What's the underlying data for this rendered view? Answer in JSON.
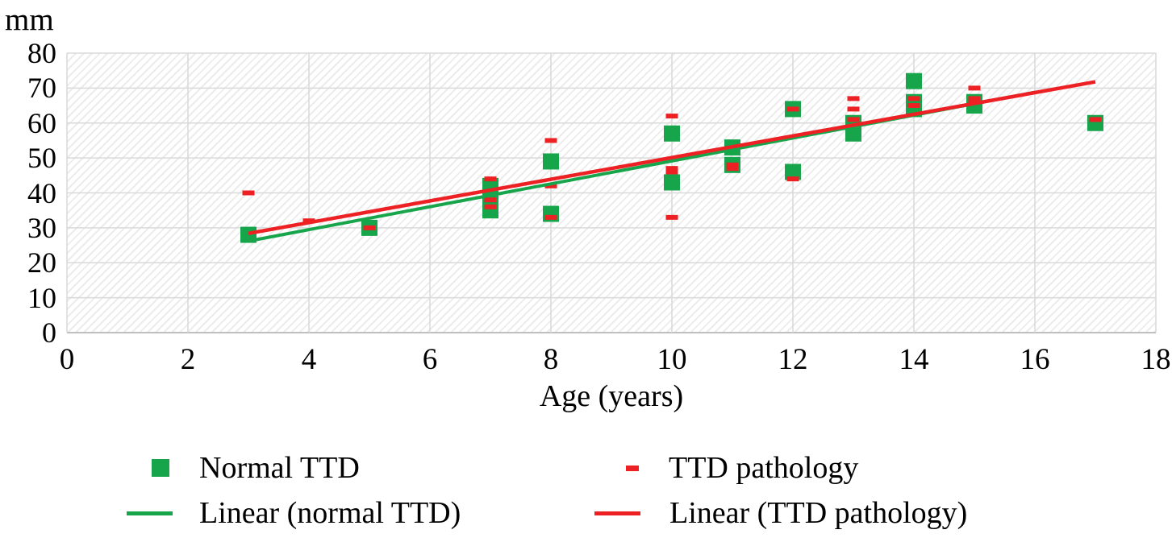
{
  "chart_data": {
    "type": "scatter",
    "y_unit_label": "mm",
    "xlabel": "Age (years)",
    "xlim": [
      0,
      18
    ],
    "ylim": [
      0,
      80
    ],
    "x_ticks": [
      0,
      2,
      4,
      6,
      8,
      10,
      12,
      14,
      16,
      18
    ],
    "y_ticks": [
      0,
      10,
      20,
      30,
      40,
      50,
      60,
      70,
      80
    ],
    "grid": true,
    "series": [
      {
        "name": "Normal TTD",
        "marker": "square",
        "color": "#17A54B",
        "points": [
          [
            3,
            28
          ],
          [
            5,
            30
          ],
          [
            7,
            42
          ],
          [
            7,
            39
          ],
          [
            7,
            35
          ],
          [
            8,
            49
          ],
          [
            8,
            34
          ],
          [
            10,
            57
          ],
          [
            10,
            43
          ],
          [
            11,
            53
          ],
          [
            11,
            48
          ],
          [
            12,
            64
          ],
          [
            12,
            46
          ],
          [
            13,
            60
          ],
          [
            13,
            57
          ],
          [
            14,
            72
          ],
          [
            14,
            66
          ],
          [
            14,
            64
          ],
          [
            15,
            66
          ],
          [
            15,
            65
          ],
          [
            17,
            60
          ]
        ]
      },
      {
        "name": "TTD pathology",
        "marker": "dash",
        "color": "#ED2024",
        "points": [
          [
            3,
            40
          ],
          [
            4,
            32
          ],
          [
            5,
            30
          ],
          [
            7,
            44
          ],
          [
            7,
            38
          ],
          [
            7,
            36
          ],
          [
            8,
            55
          ],
          [
            8,
            42
          ],
          [
            8,
            33
          ],
          [
            10,
            62
          ],
          [
            10,
            47
          ],
          [
            10,
            46
          ],
          [
            10,
            33
          ],
          [
            11,
            48
          ],
          [
            11,
            47
          ],
          [
            12,
            64
          ],
          [
            12,
            44
          ],
          [
            13,
            67
          ],
          [
            13,
            64
          ],
          [
            13,
            61
          ],
          [
            14,
            67
          ],
          [
            14,
            65
          ],
          [
            15,
            70
          ],
          [
            15,
            67
          ],
          [
            15,
            66
          ],
          [
            17,
            61
          ]
        ]
      }
    ],
    "trendlines": [
      {
        "name": "Linear (normal TTD)",
        "color": "#17A54B",
        "x1": 3,
        "y1": 26.2,
        "x2": 16,
        "y2": 68.8
      },
      {
        "name": "Linear (TTD pathology)",
        "color": "#ED2024",
        "x1": 3,
        "y1": 28.4,
        "x2": 17,
        "y2": 71.8
      }
    ],
    "gridline_color": "#D9D9D9",
    "axis_line_color": "#BFBFBF"
  },
  "legend": {
    "items": [
      {
        "label": "Normal TTD",
        "marker": "square",
        "color": "#17A54B"
      },
      {
        "label": "TTD pathology",
        "marker": "dash",
        "color": "#ED2024"
      },
      {
        "label": "Linear (normal TTD)",
        "marker": "line",
        "color": "#17A54B"
      },
      {
        "label": "Linear (TTD pathology)",
        "marker": "line",
        "color": "#ED2024"
      }
    ]
  }
}
